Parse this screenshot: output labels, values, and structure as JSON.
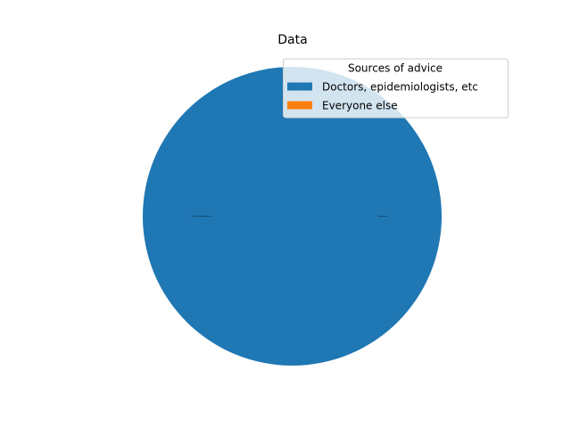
{
  "chart_data": {
    "type": "pie",
    "title": "Data",
    "labels": [
      "Doctors, epidemiologists, etc",
      "Everyone else"
    ],
    "values": [
      100,
      0
    ],
    "colors": [
      "#1f77b4",
      "#ff7f0e"
    ],
    "legend": {
      "title": "Sources of advice",
      "placement": "upper-right"
    }
  }
}
